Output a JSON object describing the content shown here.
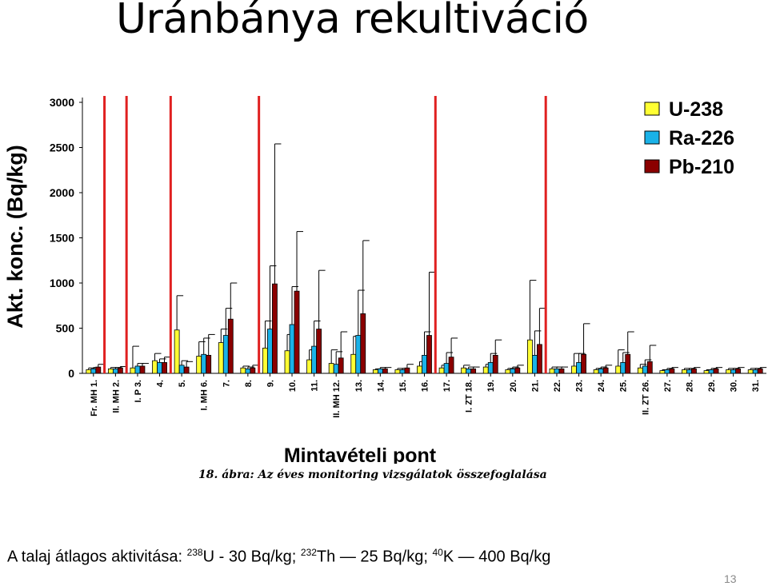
{
  "slide": {
    "title": "Uránbánya rekultiváció",
    "figure_caption": "18. ábra: Az éves monitoring vizsgálatok összefoglalása",
    "number": "13"
  },
  "summary": {
    "prefix": "A talaj átlagos aktivitása:",
    "u_mass": "238",
    "u_text": "U - 30 Bq/kg;",
    "th_mass": "232",
    "th_text": "Th — 25 Bq/kg;",
    "k_mass": "40",
    "k_text": "K — 400 Bq/kg"
  },
  "chart_data": {
    "type": "bar",
    "ylabel": "Akt. konc. (Bq/kg)",
    "xlabel": "Mintavételi pont",
    "ylim": [
      0,
      3000
    ],
    "yticks": [
      0,
      500,
      1000,
      1500,
      2000,
      2500,
      3000
    ],
    "legend_position": "top-right",
    "categories": [
      "Fr. MH 1.",
      "II. MH 2.",
      "I. P 3.",
      "4.",
      "5.",
      "I. MH 6.",
      "7.",
      "8.",
      "9.",
      "10.",
      "11.",
      "II. MH 12.",
      "13.",
      "14.",
      "15.",
      "16.",
      "17.",
      "I. ZT 18.",
      "19.",
      "20.",
      "21.",
      "22.",
      "23.",
      "24.",
      "25.",
      "II. ZT 26.",
      "27.",
      "28.",
      "29.",
      "30.",
      "31."
    ],
    "group_separators_after": [
      "Fr. MH 1.",
      "II. MH 2.",
      "4.",
      "8.",
      "16.",
      "21."
    ],
    "series": [
      {
        "name": "U-238",
        "color": "#ffff33",
        "values": [
          40,
          50,
          60,
          140,
          480,
          190,
          340,
          60,
          280,
          250,
          150,
          110,
          210,
          40,
          40,
          80,
          60,
          60,
          70,
          40,
          370,
          50,
          80,
          40,
          80,
          60,
          30,
          40,
          30,
          40,
          40
        ],
        "errors": [
          20,
          15,
          240,
          80,
          380,
          160,
          150,
          20,
          300,
          180,
          110,
          150,
          200,
          10,
          15,
          50,
          30,
          30,
          30,
          15,
          660,
          20,
          140,
          15,
          180,
          40,
          10,
          15,
          10,
          15,
          15
        ]
      },
      {
        "name": "Ra-226",
        "color": "#1ab2e8",
        "values": [
          50,
          50,
          80,
          120,
          90,
          210,
          420,
          50,
          490,
          540,
          300,
          100,
          420,
          50,
          40,
          200,
          110,
          50,
          120,
          50,
          200,
          50,
          120,
          50,
          120,
          80,
          40,
          40,
          40,
          40,
          40
        ],
        "errors": [
          15,
          15,
          30,
          40,
          50,
          180,
          300,
          20,
          700,
          420,
          280,
          140,
          500,
          15,
          15,
          260,
          120,
          20,
          100,
          20,
          270,
          20,
          100,
          20,
          110,
          70,
          15,
          15,
          15,
          15,
          15
        ]
      },
      {
        "name": "Pb-210",
        "color": "#8b0000",
        "values": [
          70,
          60,
          80,
          120,
          70,
          200,
          600,
          60,
          990,
          910,
          490,
          170,
          660,
          50,
          60,
          420,
          180,
          50,
          200,
          60,
          320,
          50,
          210,
          60,
          210,
          130,
          50,
          50,
          50,
          50,
          50
        ],
        "errors": [
          30,
          15,
          30,
          60,
          60,
          230,
          400,
          30,
          1550,
          660,
          650,
          290,
          810,
          15,
          40,
          700,
          210,
          20,
          170,
          30,
          400,
          20,
          340,
          30,
          250,
          180,
          15,
          15,
          15,
          15,
          15
        ]
      }
    ]
  }
}
